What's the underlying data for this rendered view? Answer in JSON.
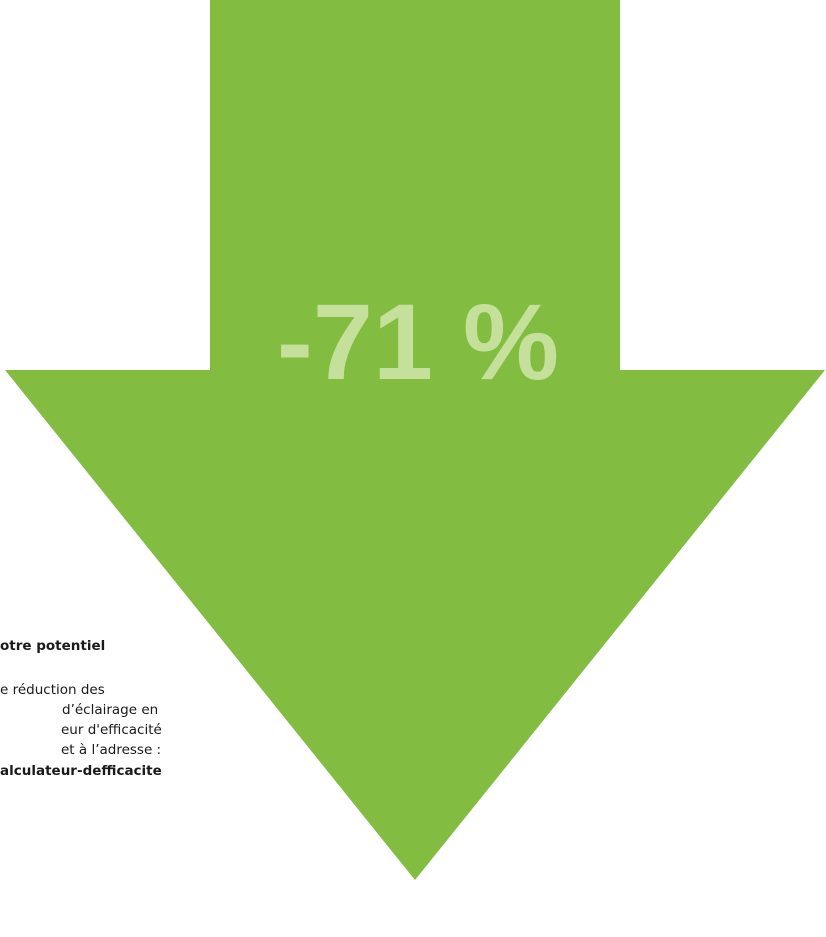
{
  "headline": "-71 %",
  "note": {
    "title": "otre potentiel",
    "lines": [
      "e réduction des",
      "d’éclairage en",
      "eur d'efficacité",
      "et à l’adresse :"
    ],
    "link": "alculateur-defficacite"
  }
}
